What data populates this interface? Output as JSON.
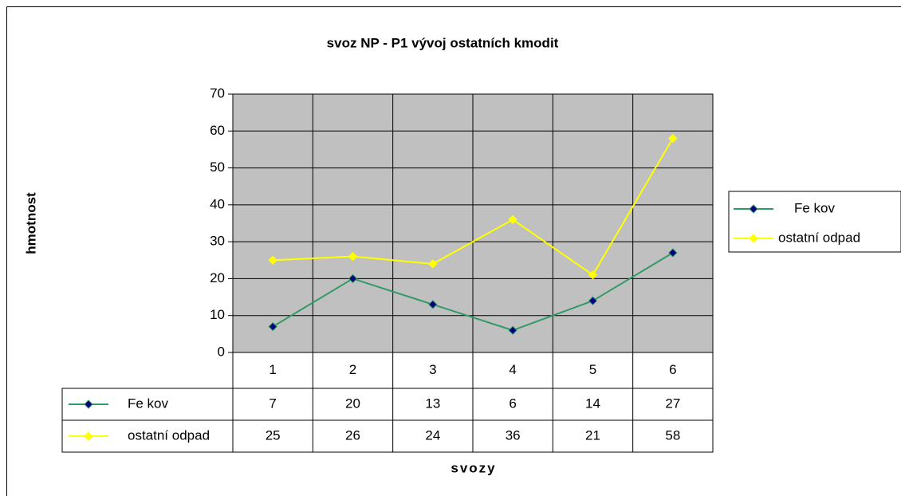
{
  "chart_data": {
    "type": "line",
    "title": "svoz NP - P1 vývoj ostatních kmodit",
    "x_label": "svozy",
    "y_label": "hmotnost",
    "categories": [
      "1",
      "2",
      "3",
      "4",
      "5",
      "6"
    ],
    "series": [
      {
        "name": "Fe kov",
        "color": "#339966",
        "marker_color": "#000080",
        "values": [
          7,
          20,
          13,
          6,
          14,
          27
        ]
      },
      {
        "name": "ostatní odpad",
        "color": "#ffff00",
        "marker_color": "#ffff00",
        "values": [
          25,
          26,
          24,
          36,
          21,
          58
        ]
      }
    ],
    "ylim": [
      0,
      70
    ],
    "yticks": [
      0,
      10,
      20,
      30,
      40,
      50,
      60,
      70
    ],
    "grid": true,
    "legend": "right",
    "data_table": true
  }
}
